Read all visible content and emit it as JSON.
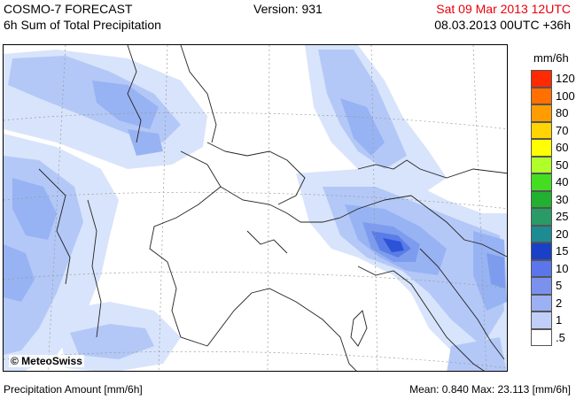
{
  "header": {
    "title": "COSMO-7 FORECAST",
    "subtitle": "6h Sum of Total Precipitation",
    "version": "Version: 931",
    "valid_time": "Sat 09 Mar 2013 12UTC",
    "valid_time_color": "#e8000a",
    "run": "08.03.2013 00UTC +36h"
  },
  "map": {
    "copyright": "© MeteoSwiss",
    "precip_colors": [
      "#d8e4fb",
      "#b3c8f7",
      "#98b3f3",
      "#7d9cee",
      "#5a7ce6",
      "#2c52d8"
    ],
    "border_color": "#222222",
    "grid_color": "#999999"
  },
  "legend": {
    "unit": "mm/6h",
    "bins": [
      {
        "label": "120",
        "color": "#ff2a00"
      },
      {
        "label": "100",
        "color": "#ff7000"
      },
      {
        "label": "80",
        "color": "#ff9c00"
      },
      {
        "label": "70",
        "color": "#ffd400"
      },
      {
        "label": "60",
        "color": "#ffff00"
      },
      {
        "label": "50",
        "color": "#b0ff2a"
      },
      {
        "label": "40",
        "color": "#44dd22"
      },
      {
        "label": "30",
        "color": "#22b030"
      },
      {
        "label": "25",
        "color": "#2a9a66"
      },
      {
        "label": "20",
        "color": "#1e8a92"
      },
      {
        "label": "15",
        "color": "#1a40c8"
      },
      {
        "label": "10",
        "color": "#5a76ea"
      },
      {
        "label": "5",
        "color": "#7a92ee"
      },
      {
        "label": "2",
        "color": "#9cb0f4"
      },
      {
        "label": "1",
        "color": "#c0cef8"
      },
      {
        "label": ".5",
        "color": "#ffffff"
      }
    ]
  },
  "footer": {
    "left": "Precipitation Amount [mm/6h]",
    "right": "Mean:  0.840 Max:  23.113 [mm/6h]"
  }
}
